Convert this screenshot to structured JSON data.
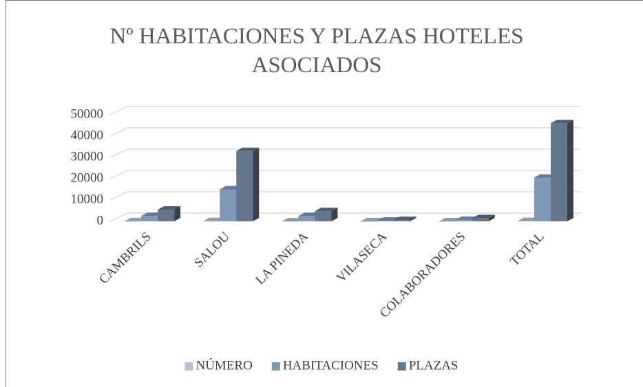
{
  "chart_data": {
    "type": "bar3d",
    "title": "Nº HABITACIONES Y PLAZAS HOTELES ASOCIADOS",
    "categories": [
      "CAMBRILS",
      "SALOU",
      "LA PINEDA",
      "VILASECA",
      "COLABORADORES",
      "TOTAL"
    ],
    "series": [
      {
        "name": "NÚMERO",
        "color": "#b4c2d3",
        "values": [
          30,
          70,
          20,
          5,
          15,
          140
        ]
      },
      {
        "name": "HABITACIONES",
        "color": "#7f98b5",
        "values": [
          2500,
          15000,
          2500,
          300,
          700,
          20500
        ]
      },
      {
        "name": "PLAZAS",
        "color": "#63768b",
        "values": [
          5500,
          33000,
          4800,
          600,
          1500,
          46000
        ]
      }
    ],
    "ylim": [
      0,
      50000
    ],
    "yticks": [
      0,
      10000,
      20000,
      30000,
      40000,
      50000
    ],
    "grid": true,
    "legend": "bottom"
  }
}
